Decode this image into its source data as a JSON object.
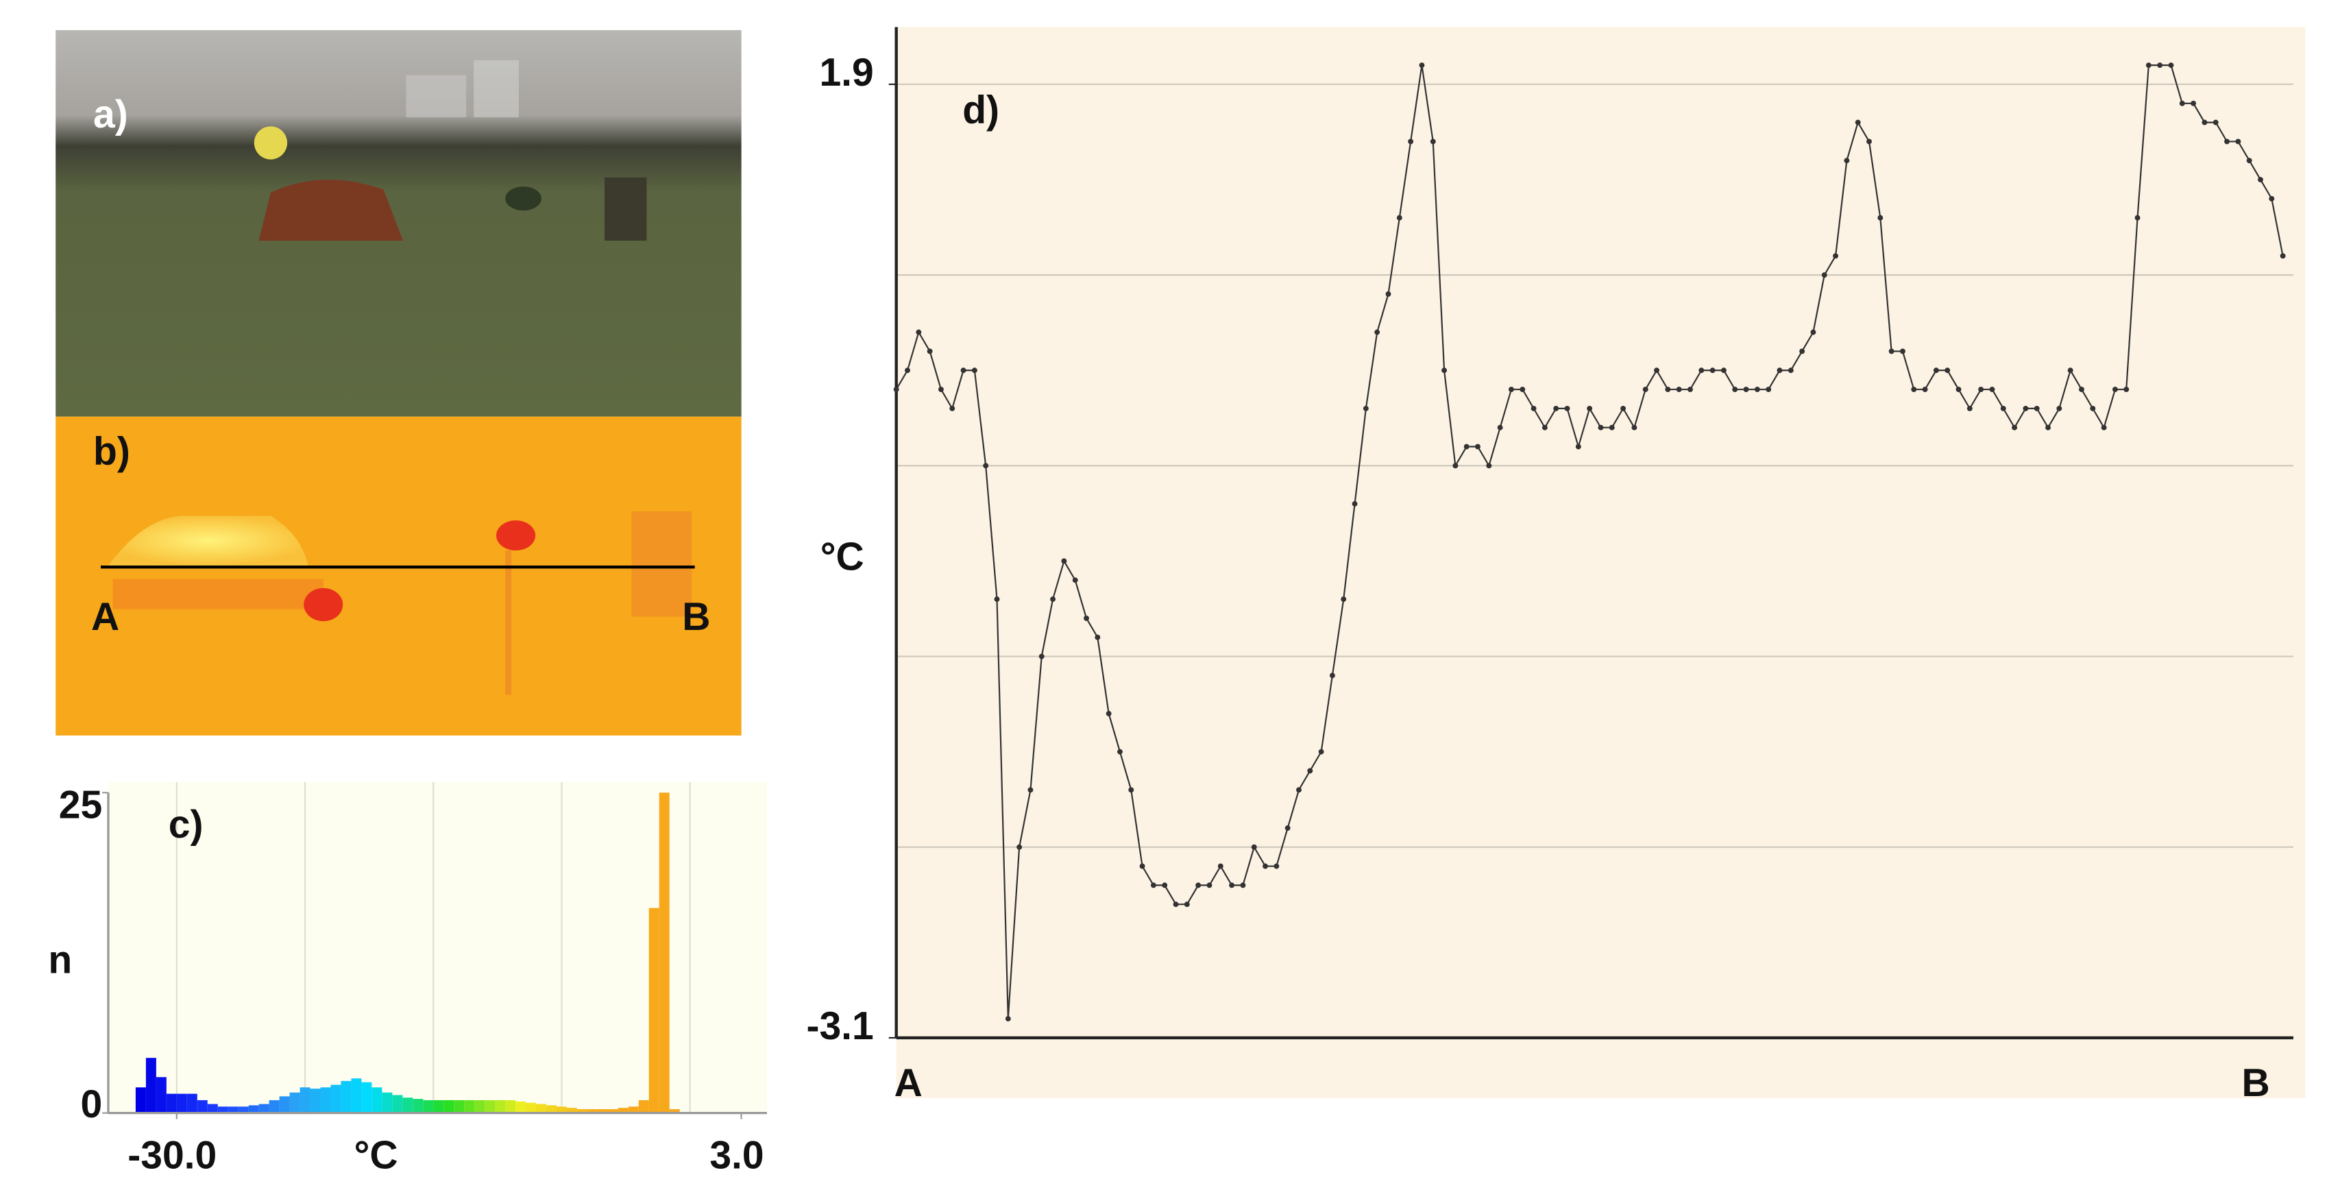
{
  "photo": {
    "label": "a)"
  },
  "thermal": {
    "label": "b)",
    "start": "A",
    "end": "B"
  },
  "chart_data": [
    {
      "type": "histogram",
      "title": "c)",
      "xlabel": "°C",
      "ylabel": "n",
      "bins": [
        -32.4,
        -31.8,
        -31.2,
        -30.6,
        -30.0,
        -29.4,
        -28.8,
        -28.2,
        -27.6,
        -27.0,
        -26.4,
        -25.8,
        -25.2,
        -24.6,
        -24.0,
        -23.4,
        -22.8,
        -22.2,
        -21.6,
        -21.0,
        -20.4,
        -19.8,
        -19.2,
        -18.6,
        -18.0,
        -17.4,
        -16.8,
        -16.2,
        -15.6,
        -15.0,
        -14.4,
        -13.8,
        -13.2,
        -12.6,
        -12.0,
        -11.4,
        -10.8,
        -10.2,
        -9.6,
        -9.0,
        -8.4,
        -7.8,
        -7.2,
        -6.6,
        -6.0,
        -5.4,
        -4.8,
        -4.2,
        -3.6,
        -3.0,
        -2.4,
        -1.8,
        -1.2,
        -0.6
      ],
      "values": [
        2,
        4.3,
        2.8,
        1.5,
        1.5,
        1.5,
        1,
        0.7,
        0.5,
        0.5,
        0.5,
        0.6,
        0.7,
        1,
        1.3,
        1.6,
        2,
        1.9,
        2,
        2.2,
        2.5,
        2.7,
        2.4,
        2,
        1.6,
        1.4,
        1.2,
        1.1,
        1,
        1,
        1,
        1,
        1,
        1,
        1,
        1,
        1,
        0.9,
        0.8,
        0.7,
        0.6,
        0.5,
        0.4,
        0.3,
        0.3,
        0.3,
        0.3,
        0.4,
        0.5,
        1,
        16,
        25,
        0.3
      ],
      "colormap": [
        "#0000e6",
        "#1a3cff",
        "#2aa0f4",
        "#00dcff",
        "#22dd22",
        "#f0f020",
        "#f7a81b",
        "#f7a81b"
      ],
      "background": "#fdfdf0",
      "xlim": [
        -34,
        4.5
      ],
      "xticks": [
        {
          "value": -30,
          "label": "-30.0"
        },
        {
          "value": 3,
          "label": "3.0"
        }
      ],
      "xgrid": [
        -30,
        -22.5,
        -15,
        -7.5,
        0
      ],
      "ylim": [
        0,
        25
      ],
      "yticks": [
        0,
        25
      ]
    },
    {
      "type": "line",
      "title": "d)",
      "ylabel": "°C",
      "x_end_labels": [
        "A",
        "B"
      ],
      "color": "#333333",
      "background": "#fdf3e4",
      "values": [
        0.3,
        0.4,
        0.6,
        0.5,
        0.3,
        0.2,
        0.4,
        0.4,
        -0.1,
        -0.8,
        -3.0,
        -2.1,
        -1.8,
        -1.1,
        -0.8,
        -0.6,
        -0.7,
        -0.9,
        -1.0,
        -1.4,
        -1.6,
        -1.8,
        -2.2,
        -2.3,
        -2.3,
        -2.4,
        -2.4,
        -2.3,
        -2.3,
        -2.2,
        -2.3,
        -2.3,
        -2.1,
        -2.2,
        -2.2,
        -2.0,
        -1.8,
        -1.7,
        -1.6,
        -1.2,
        -0.8,
        -0.3,
        0.2,
        0.6,
        0.8,
        1.2,
        1.6,
        2.0,
        1.6,
        0.4,
        -0.1,
        0.0,
        0.0,
        -0.1,
        0.1,
        0.3,
        0.3,
        0.2,
        0.1,
        0.2,
        0.2,
        0.0,
        0.2,
        0.1,
        0.1,
        0.2,
        0.1,
        0.3,
        0.4,
        0.3,
        0.3,
        0.3,
        0.4,
        0.4,
        0.4,
        0.3,
        0.3,
        0.3,
        0.3,
        0.4,
        0.4,
        0.5,
        0.6,
        0.9,
        1.0,
        1.5,
        1.7,
        1.6,
        1.2,
        0.5,
        0.5,
        0.3,
        0.3,
        0.4,
        0.4,
        0.3,
        0.2,
        0.3,
        0.3,
        0.2,
        0.1,
        0.2,
        0.2,
        0.1,
        0.2,
        0.4,
        0.3,
        0.2,
        0.1,
        0.3,
        0.3,
        1.2,
        2.0,
        2.0,
        2.0,
        1.8,
        1.8,
        1.7,
        1.7,
        1.6,
        1.6,
        1.5,
        1.4,
        1.3,
        1.0
      ],
      "ylim": [
        -3.1,
        2.2
      ],
      "yticks": [
        -3.1,
        1.9
      ],
      "ygrid": [
        1.9,
        0.9,
        -0.1,
        -1.1,
        -2.1
      ]
    }
  ]
}
